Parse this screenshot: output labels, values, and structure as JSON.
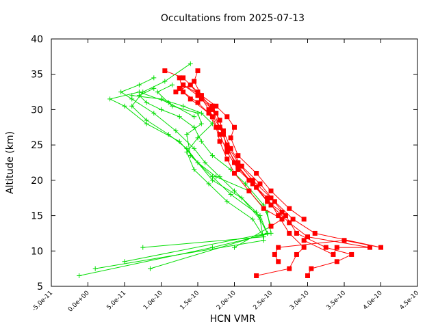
{
  "chart_data": {
    "type": "line",
    "title": "Occultations from 2025-07-13",
    "xlabel": "HCN VMR",
    "ylabel": "Altitude (km)",
    "xlim": [
      -5e-11,
      4.5e-10
    ],
    "ylim": [
      5,
      40
    ],
    "x_ticks": [
      -5e-11,
      0,
      5e-11,
      1e-10,
      1.5e-10,
      2e-10,
      2.5e-10,
      3e-10,
      3.5e-10,
      4e-10,
      4.5e-10
    ],
    "x_tick_labels": [
      "-5.0e-11",
      "0.0e+00",
      "5.0e-11",
      "1.0e-10",
      "1.5e-10",
      "2.0e-10",
      "2.5e-10",
      "3.0e-10",
      "3.5e-10",
      "4.0e-10",
      "4.5e-10"
    ],
    "y_ticks": [
      5,
      10,
      15,
      20,
      25,
      30,
      35,
      40
    ],
    "y_tick_labels": [
      "5",
      "10",
      "15",
      "20",
      "25",
      "30",
      "35",
      "40"
    ],
    "grid": false,
    "legend": "none",
    "series": [
      {
        "marker": "plus",
        "color": "#00dd00",
        "points": [
          [
            -1.2e-11,
            6.5
          ],
          [
            1.7e-10,
            10.5
          ],
          [
            2.5e-10,
            12.5
          ],
          [
            2.45e-10,
            15.5
          ],
          [
            2.2e-10,
            18.5
          ],
          [
            1.75e-10,
            20.5
          ],
          [
            1.5e-10,
            22.5
          ],
          [
            1.35e-10,
            24.5
          ],
          [
            1.1e-10,
            26.5
          ],
          [
            8e-11,
            28.5
          ],
          [
            6e-11,
            30.5
          ],
          [
            7.5e-11,
            32.5
          ],
          [
            1.05e-10,
            34.0
          ],
          [
            1.4e-10,
            36.5
          ]
        ]
      },
      {
        "marker": "plus",
        "color": "#00dd00",
        "points": [
          [
            1e-11,
            7.5
          ],
          [
            2.4e-10,
            11.5
          ],
          [
            2.35e-10,
            14.5
          ],
          [
            2.1e-10,
            17.5
          ],
          [
            1.7e-10,
            20.0
          ],
          [
            1.5e-10,
            22.5
          ],
          [
            1.25e-10,
            25.5
          ],
          [
            8e-11,
            28.0
          ],
          [
            5e-11,
            30.5
          ],
          [
            3e-11,
            31.5
          ],
          [
            7e-11,
            32.5
          ],
          [
            1.1e-10,
            31.0
          ],
          [
            1.45e-10,
            29.0
          ]
        ]
      },
      {
        "marker": "plus",
        "color": "#00dd00",
        "points": [
          [
            5e-11,
            8.5
          ],
          [
            2.45e-10,
            12.5
          ],
          [
            2.3e-10,
            15.5
          ],
          [
            2e-10,
            18.5
          ],
          [
            1.8e-10,
            20.5
          ],
          [
            1.6e-10,
            22.5
          ],
          [
            1.45e-10,
            24.5
          ],
          [
            1.2e-10,
            27.0
          ],
          [
            9e-11,
            29.5
          ],
          [
            6e-11,
            31.5
          ],
          [
            4.5e-11,
            32.5
          ],
          [
            7e-11,
            33.5
          ],
          [
            9e-11,
            34.5
          ]
        ]
      },
      {
        "marker": "plus",
        "color": "#00dd00",
        "points": [
          [
            8.5e-11,
            7.5
          ],
          [
            2.45e-10,
            12.5
          ],
          [
            2.35e-10,
            15.0
          ],
          [
            1.95e-10,
            18.0
          ],
          [
            1.7e-10,
            20.5
          ],
          [
            1.4e-10,
            23.5
          ],
          [
            1.35e-10,
            26.5
          ],
          [
            1.55e-10,
            28.0
          ],
          [
            1.5e-10,
            29.5
          ],
          [
            1.15e-10,
            30.5
          ],
          [
            9.5e-11,
            32.5
          ],
          [
            1.15e-10,
            33.5
          ]
        ]
      },
      {
        "marker": "plus",
        "color": "#00dd00",
        "points": [
          [
            7.5e-11,
            10.5
          ],
          [
            2.4e-10,
            12.0
          ],
          [
            2.25e-10,
            14.5
          ],
          [
            1.9e-10,
            17.0
          ],
          [
            1.65e-10,
            19.5
          ],
          [
            1.45e-10,
            21.5
          ],
          [
            1.35e-10,
            24.0
          ],
          [
            1.5e-10,
            26.0
          ],
          [
            1.7e-10,
            28.0
          ],
          [
            1.55e-10,
            29.5
          ],
          [
            1.3e-10,
            30.5
          ],
          [
            1e-10,
            31.5
          ],
          [
            6e-11,
            32.0
          ]
        ]
      },
      {
        "marker": "plus",
        "color": "#00dd00",
        "points": [
          [
            2e-10,
            10.5
          ],
          [
            2.5e-10,
            13.5
          ],
          [
            2.4e-10,
            16.5
          ],
          [
            2.15e-10,
            19.5
          ],
          [
            1.95e-10,
            21.5
          ],
          [
            1.7e-10,
            23.5
          ],
          [
            1.55e-10,
            25.5
          ],
          [
            1.45e-10,
            27.5
          ],
          [
            1.25e-10,
            29.0
          ],
          [
            1e-10,
            30.0
          ],
          [
            8e-11,
            31.0
          ],
          [
            7e-11,
            32.0
          ],
          [
            9e-11,
            33.0
          ]
        ]
      },
      {
        "marker": "square",
        "color": "#ff0000",
        "points": [
          [
            2.3e-10,
            6.5
          ],
          [
            2.75e-10,
            7.5
          ],
          [
            2.85e-10,
            9.5
          ],
          [
            2.95e-10,
            10.5
          ],
          [
            2.75e-10,
            12.5
          ],
          [
            2.6e-10,
            15.0
          ],
          [
            2.45e-10,
            17.5
          ],
          [
            2.2e-10,
            20.0
          ],
          [
            2e-10,
            22.5
          ],
          [
            1.9e-10,
            25.0
          ],
          [
            1.8e-10,
            27.5
          ],
          [
            1.7e-10,
            30.0
          ],
          [
            1.55e-10,
            32.0
          ],
          [
            1.45e-10,
            34.0
          ],
          [
            1.5e-10,
            35.5
          ]
        ]
      },
      {
        "marker": "square",
        "color": "#ff0000",
        "points": [
          [
            3e-10,
            6.5
          ],
          [
            3.05e-10,
            7.5
          ],
          [
            3.4e-10,
            8.5
          ],
          [
            3.6e-10,
            9.5
          ],
          [
            3.25e-10,
            10.5
          ],
          [
            2.85e-10,
            12.5
          ],
          [
            2.7e-10,
            15.0
          ],
          [
            2.5e-10,
            17.5
          ],
          [
            2.25e-10,
            20.0
          ],
          [
            2.05e-10,
            22.5
          ],
          [
            1.9e-10,
            25.0
          ],
          [
            1.8e-10,
            27.5
          ],
          [
            1.65e-10,
            30.0
          ],
          [
            1.5e-10,
            32.5
          ],
          [
            1.3e-10,
            34.5
          ],
          [
            1.05e-10,
            35.5
          ]
        ]
      },
      {
        "marker": "square",
        "color": "#ff0000",
        "points": [
          [
            2.6e-10,
            8.5
          ],
          [
            2.55e-10,
            9.5
          ],
          [
            2.6e-10,
            10.5
          ],
          [
            3.5e-10,
            11.5
          ],
          [
            4e-10,
            10.5
          ],
          [
            3.1e-10,
            12.5
          ],
          [
            2.8e-10,
            14.5
          ],
          [
            2.55e-10,
            17.0
          ],
          [
            2.35e-10,
            19.5
          ],
          [
            2.1e-10,
            22.0
          ],
          [
            1.95e-10,
            24.5
          ],
          [
            1.85e-10,
            27.0
          ],
          [
            1.75e-10,
            29.5
          ],
          [
            1.55e-10,
            31.5
          ],
          [
            1.4e-10,
            33.5
          ],
          [
            1.2e-10,
            32.5
          ]
        ]
      },
      {
        "marker": "square",
        "color": "#ff0000",
        "points": [
          [
            2.95e-10,
            11.5
          ],
          [
            3.35e-10,
            9.5
          ],
          [
            3.4e-10,
            10.5
          ],
          [
            3.85e-10,
            10.5
          ],
          [
            3e-10,
            12.0
          ],
          [
            2.75e-10,
            14.0
          ],
          [
            2.5e-10,
            16.5
          ],
          [
            2.3e-10,
            19.0
          ],
          [
            2.05e-10,
            21.5
          ],
          [
            1.9e-10,
            24.0
          ],
          [
            1.8e-10,
            26.5
          ],
          [
            1.7e-10,
            29.0
          ],
          [
            1.5e-10,
            31.0
          ],
          [
            1.3e-10,
            32.5
          ],
          [
            1.25e-10,
            34.5
          ]
        ]
      },
      {
        "marker": "square",
        "color": "#ff0000",
        "points": [
          [
            2.5e-10,
            13.5
          ],
          [
            2.65e-10,
            14.5
          ],
          [
            2.4e-10,
            16.0
          ],
          [
            2.2e-10,
            18.5
          ],
          [
            2e-10,
            21.0
          ],
          [
            1.9e-10,
            23.0
          ],
          [
            1.8e-10,
            25.5
          ],
          [
            1.75e-10,
            27.5
          ],
          [
            1.65e-10,
            29.5
          ],
          [
            1.4e-10,
            31.5
          ],
          [
            1.25e-10,
            33.0
          ]
        ]
      },
      {
        "marker": "square",
        "color": "#ff0000",
        "points": [
          [
            2.95e-10,
            14.5
          ],
          [
            2.75e-10,
            16.0
          ],
          [
            2.5e-10,
            18.5
          ],
          [
            2.3e-10,
            21.0
          ],
          [
            2.05e-10,
            23.5
          ],
          [
            1.95e-10,
            26.0
          ],
          [
            2e-10,
            27.5
          ],
          [
            1.9e-10,
            29.0
          ],
          [
            1.75e-10,
            30.5
          ],
          [
            1.55e-10,
            32.0
          ],
          [
            1.3e-10,
            33.5
          ]
        ]
      },
      {
        "marker": "square",
        "color": "#ff0000",
        "points": [
          [
            2.65e-10,
            15.5
          ],
          [
            2.45e-10,
            17.0
          ],
          [
            2.25e-10,
            19.5
          ],
          [
            2.05e-10,
            22.0
          ],
          [
            1.9e-10,
            24.5
          ],
          [
            1.85e-10,
            26.5
          ],
          [
            1.8e-10,
            28.5
          ],
          [
            1.7e-10,
            30.5
          ],
          [
            1.5e-10,
            32.0
          ],
          [
            1.3e-10,
            33.5
          ]
        ]
      }
    ]
  }
}
